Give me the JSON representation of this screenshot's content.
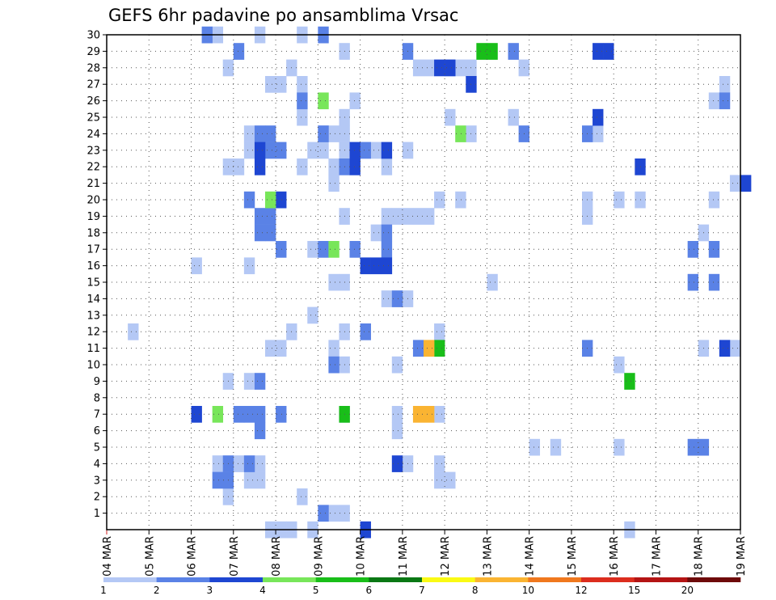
{
  "chart_data": {
    "type": "heatmap",
    "title": "GEFS 6hr padavine po ansamblima Vrsac",
    "xlabel": "",
    "ylabel": "",
    "x_ticks": [
      "04 MAR",
      "05 MAR",
      "06 MAR",
      "07 MAR",
      "08 MAR",
      "09 MAR",
      "10 MAR",
      "11 MAR",
      "12 MAR",
      "13 MAR",
      "14 MAR",
      "15 MAR",
      "16 MAR",
      "17 MAR",
      "18 MAR",
      "19 MAR"
    ],
    "x_range_days": [
      0,
      15
    ],
    "y_ticks": [
      1,
      2,
      3,
      4,
      5,
      6,
      7,
      8,
      9,
      10,
      11,
      12,
      13,
      14,
      15,
      16,
      17,
      18,
      19,
      20,
      21,
      22,
      23,
      24,
      25,
      26,
      27,
      28,
      29,
      30
    ],
    "y_range": [
      0,
      30
    ],
    "grid": true,
    "colorbar": {
      "levels": [
        "1",
        "2",
        "3",
        "4",
        "5",
        "6",
        "7",
        "8",
        "10",
        "12",
        "15",
        "20"
      ],
      "colors": [
        "#b4c8f5",
        "#5a82e6",
        "#1e46d2",
        "#78e65a",
        "#19be19",
        "#0a7814",
        "#fafa14",
        "#fab432",
        "#f0781e",
        "#dc2d1e",
        "#b41414",
        "#6e0a0a"
      ]
    },
    "series": [
      {
        "class": 1,
        "color": "#b4c8f5",
        "points": [
          [
            2.5,
            30
          ],
          [
            3.5,
            30
          ],
          [
            4.5,
            30
          ],
          [
            5.5,
            29
          ],
          [
            2.75,
            28
          ],
          [
            4.25,
            28
          ],
          [
            7.25,
            28
          ],
          [
            7.5,
            28
          ],
          [
            8.0,
            28
          ],
          [
            8.25,
            28
          ],
          [
            8.5,
            28
          ],
          [
            9.75,
            28
          ],
          [
            3.75,
            27
          ],
          [
            4.0,
            27
          ],
          [
            4.5,
            27
          ],
          [
            14.5,
            27
          ],
          [
            5.75,
            26
          ],
          [
            14.25,
            26
          ],
          [
            4.5,
            25
          ],
          [
            5.5,
            25
          ],
          [
            8.0,
            25
          ],
          [
            9.5,
            25
          ],
          [
            3.25,
            24
          ],
          [
            5.0,
            24
          ],
          [
            5.25,
            24
          ],
          [
            5.5,
            24
          ],
          [
            8.5,
            24
          ],
          [
            11.5,
            24
          ],
          [
            3.25,
            23
          ],
          [
            4.75,
            23
          ],
          [
            5.0,
            23
          ],
          [
            5.5,
            23
          ],
          [
            6.25,
            23
          ],
          [
            7.0,
            23
          ],
          [
            2.75,
            22
          ],
          [
            3.0,
            22
          ],
          [
            4.5,
            22
          ],
          [
            5.25,
            22
          ],
          [
            6.5,
            22
          ],
          [
            5.25,
            21
          ],
          [
            14.75,
            21
          ],
          [
            7.75,
            20
          ],
          [
            8.25,
            20
          ],
          [
            11.25,
            20
          ],
          [
            12.0,
            20
          ],
          [
            12.5,
            20
          ],
          [
            14.25,
            20
          ],
          [
            5.5,
            19
          ],
          [
            6.5,
            19
          ],
          [
            6.75,
            19
          ],
          [
            7.0,
            19
          ],
          [
            7.25,
            19
          ],
          [
            7.5,
            19
          ],
          [
            11.25,
            19
          ],
          [
            6.25,
            18
          ],
          [
            14.0,
            18
          ],
          [
            4.75,
            17
          ],
          [
            2.0,
            16
          ],
          [
            3.25,
            16
          ],
          [
            5.25,
            15
          ],
          [
            5.5,
            15
          ],
          [
            9.0,
            15
          ],
          [
            6.5,
            14
          ],
          [
            7.0,
            14
          ],
          [
            4.75,
            13
          ],
          [
            0.5,
            12
          ],
          [
            4.25,
            12
          ],
          [
            5.5,
            12
          ],
          [
            7.75,
            12
          ],
          [
            3.75,
            11
          ],
          [
            4.0,
            11
          ],
          [
            5.25,
            11
          ],
          [
            14.0,
            11
          ],
          [
            14.75,
            11
          ],
          [
            5.5,
            10
          ],
          [
            6.75,
            10
          ],
          [
            12.0,
            10
          ],
          [
            2.75,
            9
          ],
          [
            3.25,
            9
          ],
          [
            5.5,
            7
          ],
          [
            6.75,
            7
          ],
          [
            7.75,
            7
          ],
          [
            6.75,
            6
          ],
          [
            10.0,
            5
          ],
          [
            10.5,
            5
          ],
          [
            12.0,
            5
          ],
          [
            2.5,
            4
          ],
          [
            3.0,
            4
          ],
          [
            3.5,
            4
          ],
          [
            7.0,
            4
          ],
          [
            7.75,
            4
          ],
          [
            3.25,
            3
          ],
          [
            3.5,
            3
          ],
          [
            7.75,
            3
          ],
          [
            8.0,
            3
          ],
          [
            2.75,
            2
          ],
          [
            4.5,
            2
          ],
          [
            5.25,
            1
          ],
          [
            5.5,
            1
          ],
          [
            3.75,
            0
          ],
          [
            4.0,
            0
          ],
          [
            4.25,
            0
          ],
          [
            4.75,
            0
          ],
          [
            12.25,
            0
          ]
        ]
      },
      {
        "class": 2,
        "color": "#5a82e6",
        "points": [
          [
            2.25,
            30
          ],
          [
            5.0,
            30
          ],
          [
            3.0,
            29
          ],
          [
            7.0,
            29
          ],
          [
            9.5,
            29
          ],
          [
            4.5,
            26
          ],
          [
            14.5,
            26
          ],
          [
            3.5,
            24
          ],
          [
            3.75,
            24
          ],
          [
            5.0,
            24
          ],
          [
            9.75,
            24
          ],
          [
            11.25,
            24
          ],
          [
            3.75,
            23
          ],
          [
            4.0,
            23
          ],
          [
            6.0,
            23
          ],
          [
            5.5,
            22
          ],
          [
            3.25,
            20
          ],
          [
            3.5,
            19
          ],
          [
            3.75,
            19
          ],
          [
            3.5,
            18
          ],
          [
            3.75,
            18
          ],
          [
            6.5,
            18
          ],
          [
            4.0,
            17
          ],
          [
            5.0,
            17
          ],
          [
            5.75,
            17
          ],
          [
            6.5,
            17
          ],
          [
            13.75,
            17
          ],
          [
            14.25,
            17
          ],
          [
            13.75,
            15
          ],
          [
            14.25,
            15
          ],
          [
            6.75,
            14
          ],
          [
            6.0,
            12
          ],
          [
            7.25,
            11
          ],
          [
            11.25,
            11
          ],
          [
            5.25,
            10
          ],
          [
            3.5,
            9
          ],
          [
            3.0,
            7
          ],
          [
            3.25,
            7
          ],
          [
            3.5,
            7
          ],
          [
            4.0,
            7
          ],
          [
            3.5,
            6
          ],
          [
            13.75,
            5
          ],
          [
            14.0,
            5
          ],
          [
            2.75,
            4
          ],
          [
            3.25,
            4
          ],
          [
            2.5,
            3
          ],
          [
            2.75,
            3
          ],
          [
            5.0,
            1
          ]
        ]
      },
      {
        "class": 3,
        "color": "#1e46d2",
        "points": [
          [
            11.5,
            29
          ],
          [
            11.75,
            29
          ],
          [
            7.75,
            28
          ],
          [
            8.0,
            28
          ],
          [
            8.5,
            27
          ],
          [
            11.5,
            25
          ],
          [
            3.5,
            23
          ],
          [
            5.75,
            23
          ],
          [
            6.5,
            23
          ],
          [
            3.5,
            22
          ],
          [
            5.75,
            22
          ],
          [
            12.5,
            22
          ],
          [
            15.0,
            21
          ],
          [
            4.0,
            20
          ],
          [
            6.0,
            16
          ],
          [
            6.25,
            16
          ],
          [
            6.5,
            16
          ],
          [
            14.5,
            11
          ],
          [
            2.0,
            7
          ],
          [
            6.75,
            4
          ],
          [
            6.0,
            0
          ]
        ]
      },
      {
        "class": 4,
        "color": "#78e65a",
        "points": [
          [
            5.0,
            26
          ],
          [
            8.25,
            24
          ],
          [
            3.75,
            20
          ],
          [
            5.25,
            17
          ],
          [
            2.5,
            7
          ]
        ]
      },
      {
        "class": 5,
        "color": "#19be19",
        "points": [
          [
            8.75,
            29
          ],
          [
            9.0,
            29
          ],
          [
            7.75,
            11
          ],
          [
            5.5,
            7
          ],
          [
            12.25,
            9
          ]
        ]
      },
      {
        "class": 8,
        "color": "#fab432",
        "points": [
          [
            7.5,
            11
          ],
          [
            7.25,
            7
          ],
          [
            7.5,
            7
          ]
        ]
      }
    ]
  }
}
